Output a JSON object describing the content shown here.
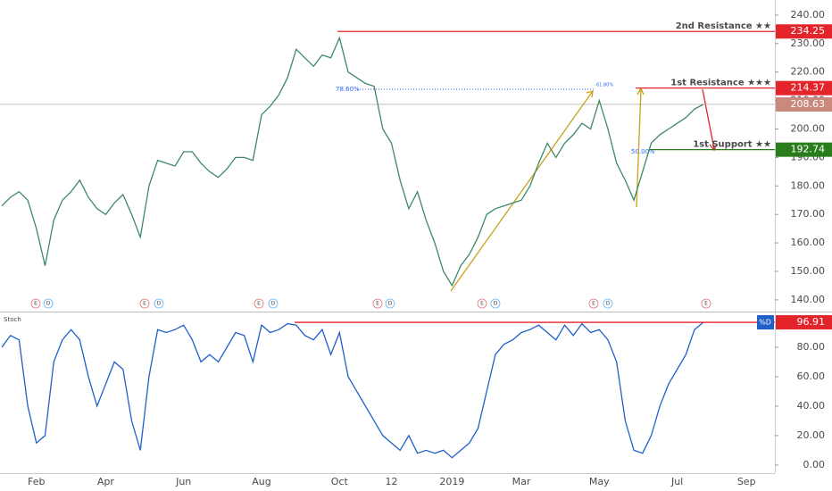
{
  "chart_data": [
    {
      "type": "line",
      "color": "#3d8a64",
      "categories": [
        null,
        null,
        null,
        null,
        "Feb",
        null,
        null,
        null,
        null,
        null,
        null,
        null,
        "Apr",
        null,
        null,
        null,
        null,
        null,
        null,
        null,
        null,
        "Jun",
        null,
        null,
        null,
        null,
        null,
        null,
        null,
        null,
        "Aug",
        null,
        null,
        null,
        null,
        null,
        null,
        null,
        null,
        "Oct",
        null,
        null,
        null,
        null,
        null,
        "12",
        null,
        null,
        null,
        null,
        null,
        null,
        "2019",
        null,
        null,
        null,
        null,
        null,
        null,
        null,
        "Mar",
        null,
        null,
        null,
        null,
        null,
        null,
        null,
        null,
        "May",
        null,
        null,
        null,
        null,
        null,
        null,
        null,
        null,
        "Jul",
        null,
        null,
        null,
        null,
        null,
        null,
        null,
        "Sep",
        null,
        null,
        null
      ],
      "values": [
        173,
        176,
        178,
        175,
        165,
        152,
        168,
        175,
        178,
        182,
        176,
        172,
        170,
        174,
        177,
        170,
        162,
        180,
        189,
        188,
        187,
        192,
        192,
        188,
        185,
        183,
        186,
        190,
        190,
        189,
        205,
        208,
        212,
        218,
        228,
        225,
        222,
        226,
        225,
        232,
        220,
        218,
        216,
        215,
        200,
        195,
        182,
        172,
        178,
        168,
        160,
        150,
        145,
        152,
        156,
        162,
        170,
        172,
        173,
        174,
        175,
        180,
        188,
        195,
        190,
        195,
        198,
        202,
        200,
        210,
        200,
        188,
        182,
        175,
        185,
        195,
        198,
        200,
        202,
        204,
        207,
        208.63,
        null,
        null,
        null,
        null,
        null,
        null,
        null,
        null
      ],
      "ylim": [
        136.2,
        245.3
      ],
      "yticks": [
        {
          "value": 140,
          "label": "140.00"
        },
        {
          "value": 150,
          "label": "150.00"
        },
        {
          "value": 160,
          "label": "160.00"
        },
        {
          "value": 170,
          "label": "170.00"
        },
        {
          "value": 180,
          "label": "180.00"
        },
        {
          "value": 190,
          "label": "190.00"
        },
        {
          "value": 200,
          "label": "200.00"
        },
        {
          "value": 210,
          "label": "210.00"
        },
        {
          "value": 220,
          "label": "220.00"
        },
        {
          "value": 230,
          "label": "230.00"
        },
        {
          "value": 240,
          "label": "240.00"
        }
      ],
      "levels": [
        {
          "label": "2nd Resistance ★★",
          "value": 234.25,
          "color": "#e3242b"
        },
        {
          "label": "1st Resistance ★★★",
          "value": 214.37,
          "color": "#e3242b"
        },
        {
          "label": "1st Support ★★",
          "value": 192.74,
          "color": "#2a7d1c"
        }
      ],
      "last": {
        "value": 208.63,
        "color": "#c9897d"
      },
      "annotations": [
        "78.60%",
        "50.00%",
        "61.80%"
      ],
      "events": [
        "E",
        "D",
        "E",
        "D",
        "E",
        "D",
        "E",
        "D",
        "E",
        "D",
        "E",
        "D",
        "E"
      ]
    },
    {
      "type": "line",
      "title": "Stoch",
      "color": "#1f5fc9",
      "values": [
        80,
        88,
        85,
        40,
        15,
        20,
        70,
        85,
        92,
        85,
        60,
        40,
        55,
        70,
        65,
        30,
        10,
        60,
        92,
        90,
        92,
        95,
        85,
        70,
        75,
        70,
        80,
        90,
        88,
        70,
        95,
        90,
        92,
        96,
        95,
        88,
        85,
        92,
        75,
        90,
        60,
        50,
        40,
        30,
        20,
        15,
        10,
        20,
        8,
        10,
        8,
        10,
        5,
        10,
        15,
        25,
        50,
        75,
        82,
        85,
        90,
        92,
        95,
        90,
        85,
        95,
        88,
        96,
        90,
        92,
        85,
        70,
        30,
        10,
        8,
        20,
        40,
        55,
        65,
        75,
        92,
        96.91,
        null,
        null,
        null,
        null,
        null,
        null,
        null,
        null
      ],
      "ylim": [
        -5.5,
        102.4
      ],
      "yticks": [
        {
          "value": 0,
          "label": "0.00"
        },
        {
          "value": 20,
          "label": "20.00"
        },
        {
          "value": 40,
          "label": "40.00"
        },
        {
          "value": 60,
          "label": "60.00"
        },
        {
          "value": 80,
          "label": "80.00"
        }
      ],
      "levels": [
        {
          "label": "%D",
          "value": 96.91,
          "color": "#e3242b"
        }
      ]
    }
  ]
}
